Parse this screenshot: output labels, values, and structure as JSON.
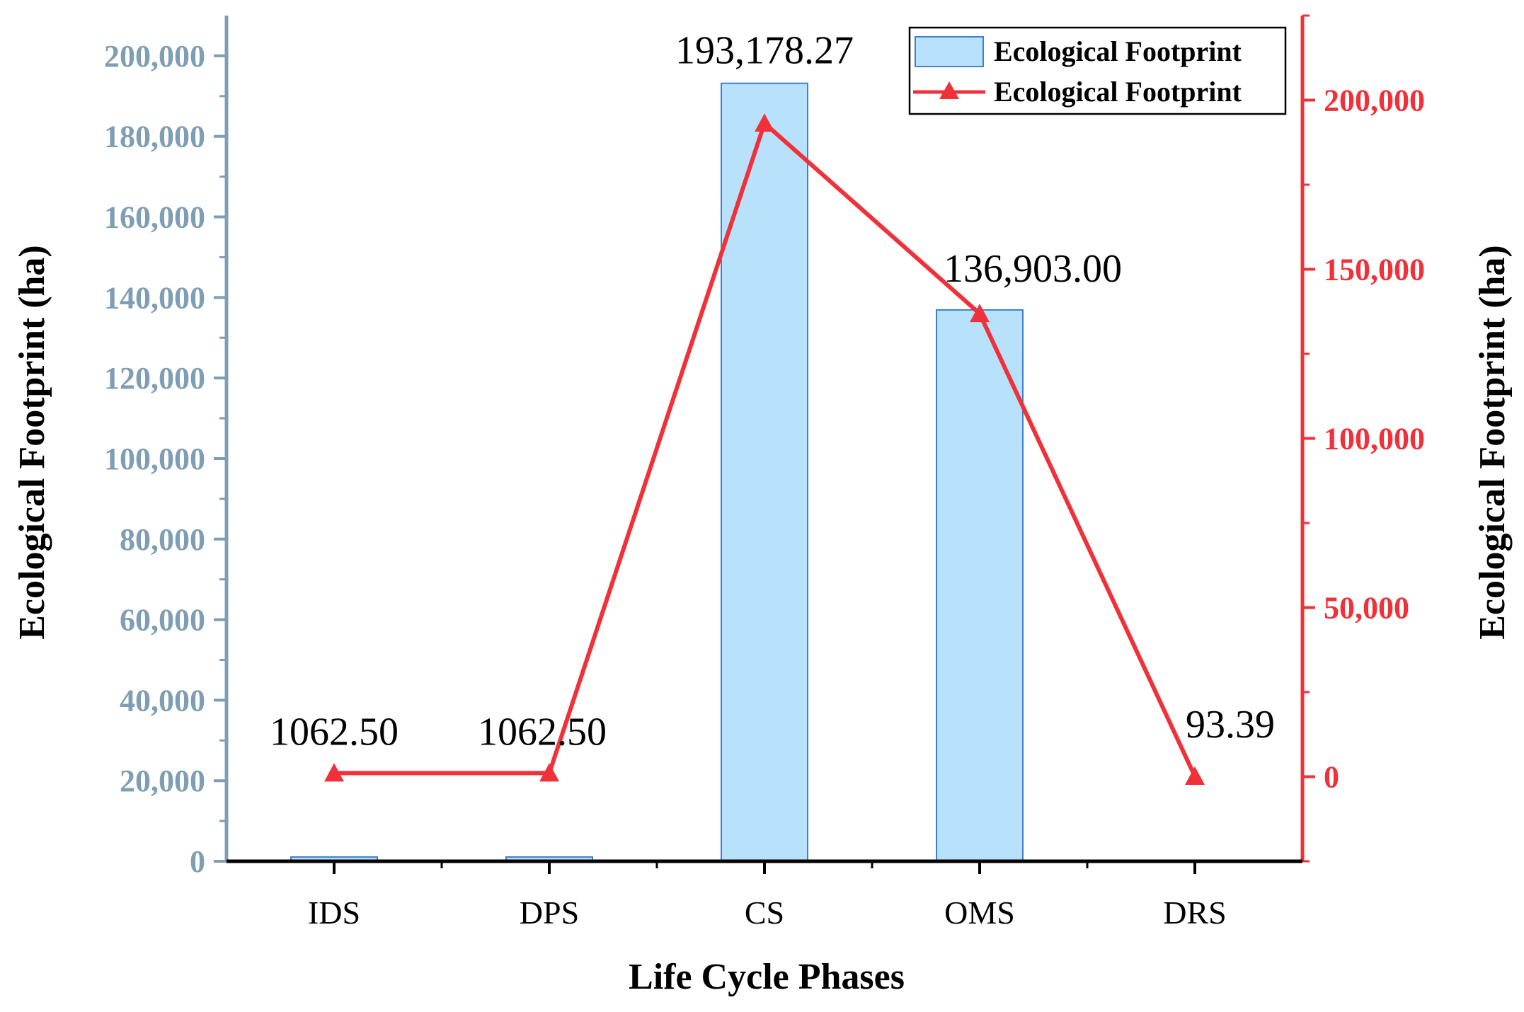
{
  "chart_data": {
    "type": "bar",
    "categories": [
      "IDS",
      "DPS",
      "CS",
      "OMS",
      "DRS"
    ],
    "series": [
      {
        "name": "Ecological Footprint",
        "kind": "bar",
        "axis": "left",
        "values": [
          1062.5,
          1062.5,
          193178.27,
          136903.0,
          93.39
        ]
      },
      {
        "name": "Ecological Footprint",
        "kind": "line",
        "marker": "triangle",
        "axis": "right",
        "values": [
          1062.5,
          1062.5,
          193178.27,
          136903.0,
          93.39
        ]
      }
    ],
    "data_labels": [
      "1062.50",
      "1062.50",
      "193,178.27",
      "136,903.00",
      "93.39"
    ],
    "xlabel": "Life Cycle Phases",
    "ylabel_left": "Ecological Footprint (ha)",
    "ylabel_right": "Ecological Footprint (ha)",
    "ylim_left": [
      0,
      210000
    ],
    "ylim_right": [
      -25000,
      225000
    ],
    "yticks_left": [
      0,
      20000,
      40000,
      60000,
      80000,
      100000,
      120000,
      140000,
      160000,
      180000,
      200000
    ],
    "yticks_left_labels": [
      "0",
      "20,000",
      "40,000",
      "60,000",
      "80,000",
      "100,000",
      "120,000",
      "140,000",
      "160,000",
      "180,000",
      "200,000"
    ],
    "yticks_right": [
      0,
      50000,
      100000,
      150000,
      200000
    ],
    "yticks_right_labels": [
      "0",
      "50,000",
      "100,000",
      "150,000",
      "200,000"
    ],
    "legend_position": "top-right",
    "colors": {
      "bar_fill": "#b8e2fb",
      "bar_stroke": "#3f7fcf",
      "line": "#f0313a",
      "left_axis": "#7f9db3",
      "right_axis": "#f0313a",
      "x_axis": "#000000"
    }
  }
}
